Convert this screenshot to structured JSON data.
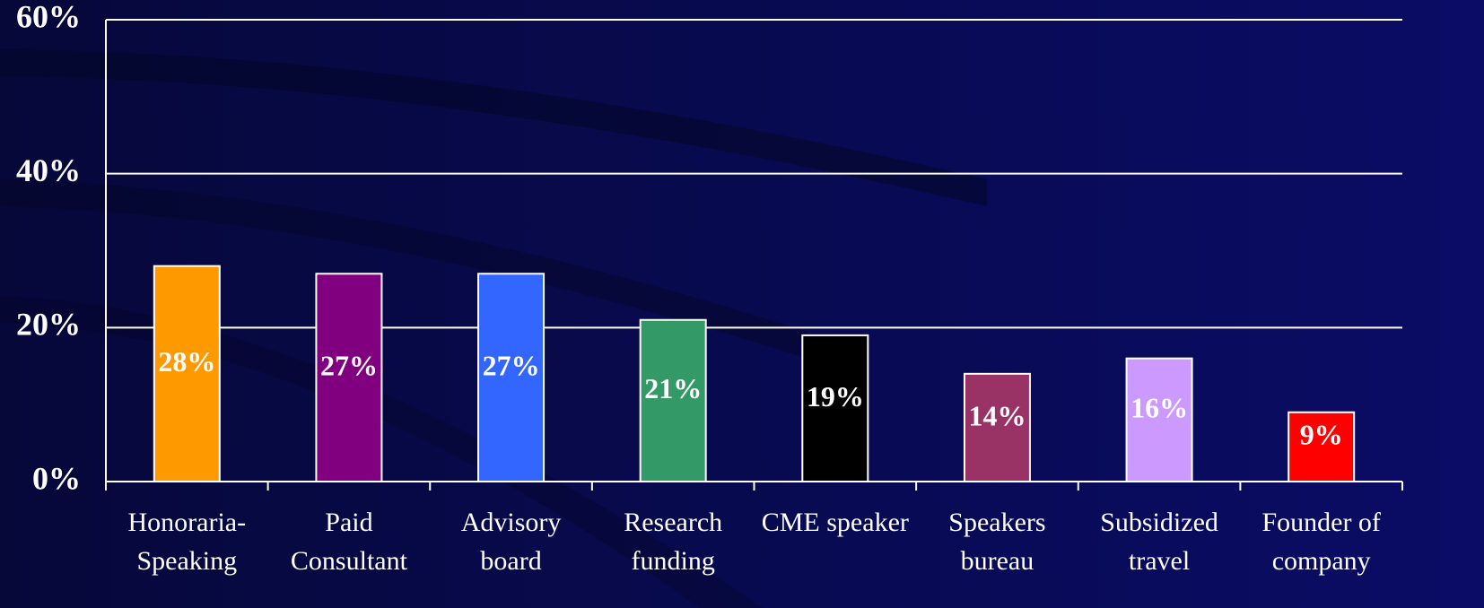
{
  "chart_data": {
    "type": "bar",
    "categories": [
      [
        "Honoraria-",
        "Speaking"
      ],
      [
        "Paid",
        "Consultant"
      ],
      [
        "Advisory",
        "board"
      ],
      [
        "Research",
        "funding"
      ],
      [
        "CME speaker"
      ],
      [
        "Speakers",
        "bureau"
      ],
      [
        "Subsidized",
        "travel"
      ],
      [
        "Founder of",
        "company"
      ]
    ],
    "values": [
      28,
      27,
      27,
      21,
      19,
      14,
      16,
      9
    ],
    "value_labels": [
      "28%",
      "27%",
      "27%",
      "21%",
      "19%",
      "14%",
      "16%",
      "9%"
    ],
    "colors": [
      "#FF9900",
      "#800080",
      "#3366FF",
      "#339966",
      "#000000",
      "#993366",
      "#CC99FF",
      "#FF0000"
    ],
    "ylim": [
      0,
      60
    ],
    "yticks": [
      {
        "value": 0,
        "label": "0%"
      },
      {
        "value": 20,
        "label": "20%"
      },
      {
        "value": 40,
        "label": "40%"
      },
      {
        "value": 60,
        "label": "60%"
      }
    ],
    "grid": true
  }
}
